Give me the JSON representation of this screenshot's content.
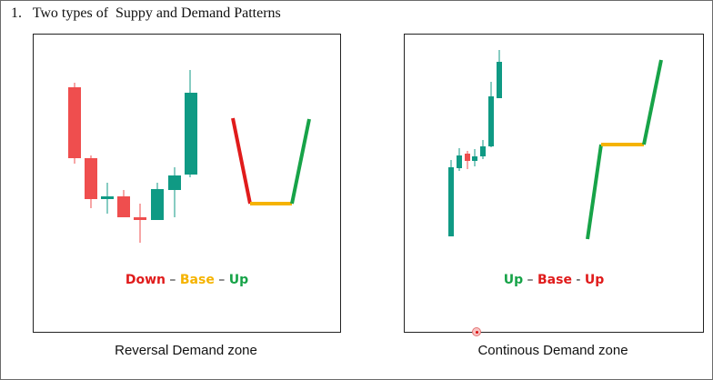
{
  "heading": {
    "number": "1.",
    "text": "Two types of  Suppy and Demand Patterns"
  },
  "panels": [
    {
      "caption": "Reversal Demand zone",
      "legend": [
        {
          "text": "Down",
          "color": "#e01b1b"
        },
        {
          "text": " – ",
          "color": "#222222"
        },
        {
          "text": "Base",
          "color": "#f5b301"
        },
        {
          "text": " – ",
          "color": "#222222"
        },
        {
          "text": "Up",
          "color": "#17a348"
        }
      ],
      "path_colors": {
        "down": "#e01b1b",
        "base": "#f5b301",
        "up": "#17a348"
      }
    },
    {
      "caption": "Continous Demand zone",
      "legend": [
        {
          "text": "Up",
          "color": "#17a348"
        },
        {
          "text": " – ",
          "color": "#222222"
        },
        {
          "text": "Base",
          "color": "#e01b1b"
        },
        {
          "text": " - ",
          "color": "#222222"
        },
        {
          "text": "Up",
          "color": "#e01b1b"
        }
      ],
      "path_colors": {
        "up1": "#17a348",
        "base": "#f5b301",
        "up2": "#17a348"
      }
    }
  ],
  "candle_colors": {
    "bull": "#0f9a84",
    "bear": "#ef4e4e"
  }
}
